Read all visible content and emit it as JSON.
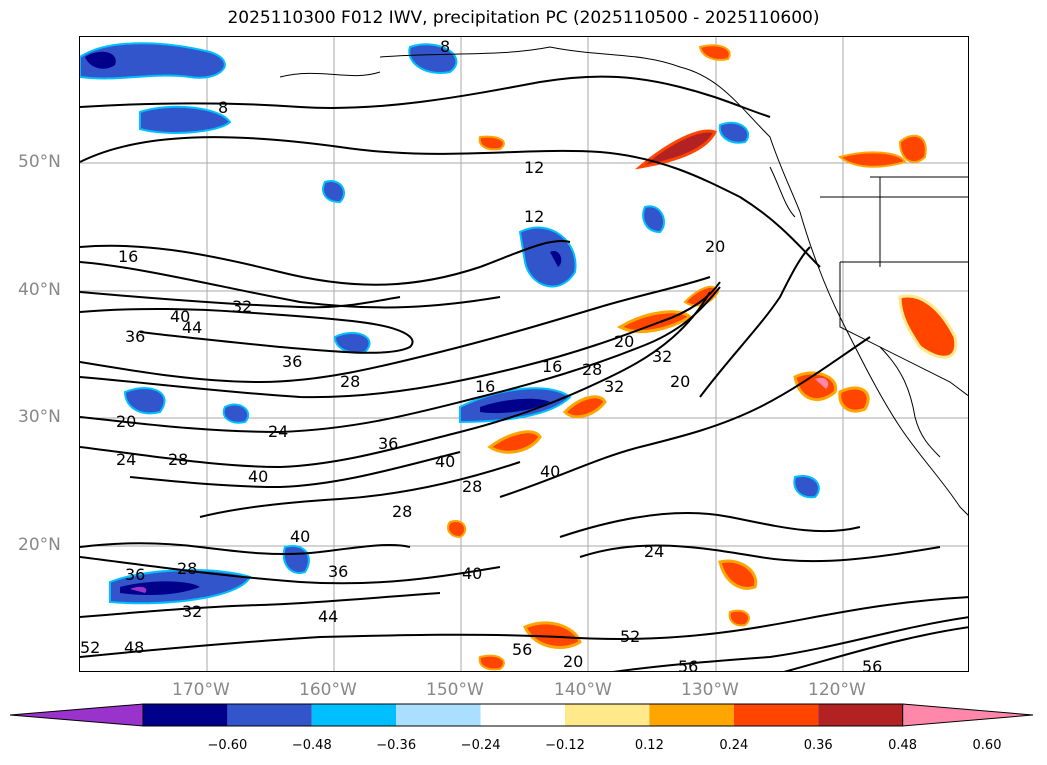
{
  "title": "2025110300 F012 IWV, precipitation PC (2025110500 - 2025110600)",
  "lat_labels": [
    "50°N",
    "40°N",
    "30°N",
    "20°N"
  ],
  "lon_labels": [
    "170°W",
    "160°W",
    "150°W",
    "140°W",
    "130°W",
    "120°W"
  ],
  "colorbar": {
    "ticks": [
      "−0.60",
      "−0.48",
      "−0.36",
      "−0.24",
      "−0.12",
      "0.12",
      "0.24",
      "0.36",
      "0.48",
      "0.60"
    ],
    "colors": [
      "#9933cc",
      "#00008b",
      "#3355cc",
      "#00bfff",
      "#aadfff",
      "#ffffff",
      "#ffe98a",
      "#ffa500",
      "#ff4500",
      "#b22222",
      "#ff88aa"
    ]
  },
  "contour_labels": [
    "8",
    "8",
    "12",
    "12",
    "16",
    "20",
    "32",
    "40",
    "44",
    "36",
    "36",
    "28",
    "20",
    "24",
    "28",
    "24",
    "36",
    "40",
    "40",
    "28",
    "28",
    "16",
    "16",
    "28",
    "32",
    "20",
    "20",
    "32",
    "40",
    "36",
    "28",
    "40",
    "36",
    "32",
    "44",
    "40",
    "52",
    "56",
    "52",
    "48",
    "24",
    "56",
    "56",
    "20"
  ]
}
